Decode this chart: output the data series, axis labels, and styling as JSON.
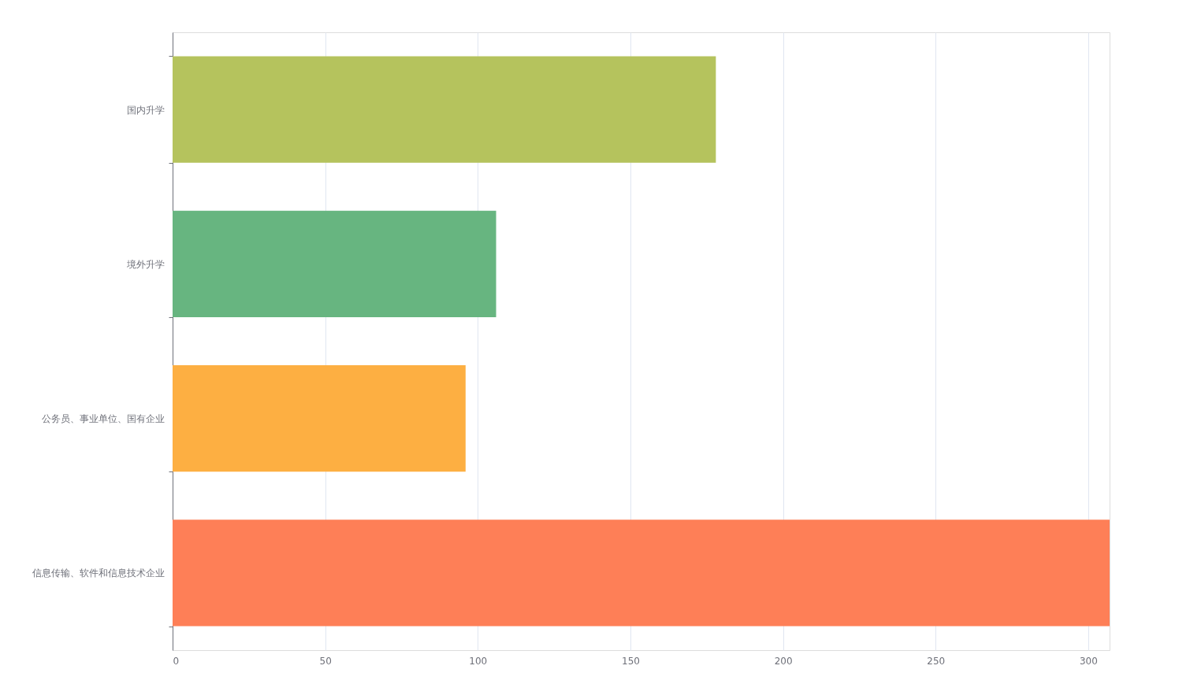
{
  "chart_data": {
    "type": "bar",
    "orientation": "horizontal",
    "categories": [
      "国内升学",
      "境外升学",
      "公务员、事业单位、国有企业",
      "信息传输、软件和信息技术企业"
    ],
    "values": [
      178,
      106,
      96,
      307
    ],
    "colors": [
      "#b5c35d",
      "#67b580",
      "#fdaf42",
      "#fe7f57"
    ],
    "xlim": [
      0,
      307
    ],
    "xticks": [
      0,
      50,
      100,
      150,
      200,
      250,
      300
    ],
    "grid": "x"
  }
}
